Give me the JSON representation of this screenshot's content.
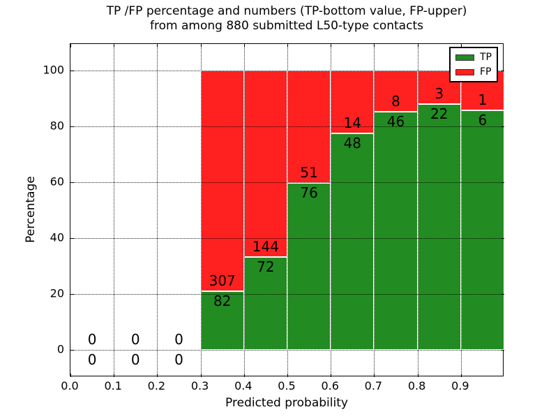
{
  "figure": {
    "title_line1": "TP /FP percentage and numbers (TP-bottom value, FP-upper)",
    "title_line2": "from among 880 submitted L50-type contacts",
    "xlabel": "Predicted probability",
    "ylabel": "Percentage"
  },
  "legend": {
    "items": [
      {
        "label": "TP",
        "color": "#228B22"
      },
      {
        "label": "FP",
        "color": "#FF2020"
      }
    ]
  },
  "chart_data": {
    "type": "bar",
    "stacked": true,
    "normalized_to_percent": true,
    "title": "TP /FP percentage and numbers (TP-bottom value, FP-upper)\nfrom among 880 submitted L50-type contacts",
    "xlabel": "Predicted probability",
    "ylabel": "Percentage",
    "xlim": [
      0.0,
      1.0
    ],
    "ylim": [
      -10,
      110
    ],
    "x_ticks": [
      "0.0",
      "0.1",
      "0.2",
      "0.3",
      "0.4",
      "0.5",
      "0.6",
      "0.7",
      "0.8",
      "0.9"
    ],
    "y_ticks": [
      0,
      20,
      40,
      60,
      80,
      100
    ],
    "grid": "dotted black on both axes",
    "legend_position": "upper right",
    "bar_edge_color": "#ffffff",
    "categories": [
      "0.0-0.1",
      "0.1-0.2",
      "0.2-0.3",
      "0.3-0.4",
      "0.4-0.5",
      "0.5-0.6",
      "0.6-0.7",
      "0.7-0.8",
      "0.8-0.9",
      "0.9-1.0"
    ],
    "series": [
      {
        "name": "TP",
        "color": "#228B22",
        "values": [
          0,
          0,
          0,
          82,
          72,
          76,
          48,
          46,
          22,
          6
        ]
      },
      {
        "name": "FP",
        "color": "#FF2020",
        "values": [
          0,
          0,
          0,
          307,
          144,
          51,
          14,
          8,
          3,
          1
        ]
      }
    ],
    "bins": [
      {
        "x0": 0.0,
        "x1": 0.1,
        "tp": 0,
        "fp": 0,
        "tp_pct": null,
        "fp_pct": null
      },
      {
        "x0": 0.1,
        "x1": 0.2,
        "tp": 0,
        "fp": 0,
        "tp_pct": null,
        "fp_pct": null
      },
      {
        "x0": 0.2,
        "x1": 0.3,
        "tp": 0,
        "fp": 0,
        "tp_pct": null,
        "fp_pct": null
      },
      {
        "x0": 0.3,
        "x1": 0.4,
        "tp": 82,
        "fp": 307,
        "tp_pct": 21.08,
        "fp_pct": 78.92
      },
      {
        "x0": 0.4,
        "x1": 0.5,
        "tp": 72,
        "fp": 144,
        "tp_pct": 33.33,
        "fp_pct": 66.67
      },
      {
        "x0": 0.5,
        "x1": 0.6,
        "tp": 76,
        "fp": 51,
        "tp_pct": 59.84,
        "fp_pct": 40.16
      },
      {
        "x0": 0.6,
        "x1": 0.7,
        "tp": 48,
        "fp": 14,
        "tp_pct": 77.42,
        "fp_pct": 22.58
      },
      {
        "x0": 0.7,
        "x1": 0.8,
        "tp": 46,
        "fp": 8,
        "tp_pct": 85.19,
        "fp_pct": 14.81
      },
      {
        "x0": 0.8,
        "x1": 0.9,
        "tp": 22,
        "fp": 3,
        "tp_pct": 88.0,
        "fp_pct": 12.0
      },
      {
        "x0": 0.9,
        "x1": 1.0,
        "tp": 6,
        "fp": 1,
        "tp_pct": 85.71,
        "fp_pct": 14.29
      }
    ],
    "total_submitted": 880
  }
}
